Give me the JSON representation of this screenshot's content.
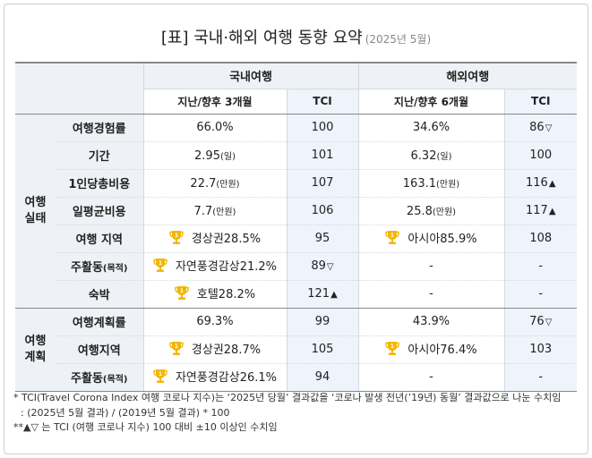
{
  "title": "[표] 국내·해외 여행 동향 요약",
  "title_sub": "(2025년 5월)",
  "headers": {
    "domestic": "국내여행",
    "overseas": "해외여행",
    "dom_period": "지난/향후 3개월",
    "ovs_period": "지난/향후 6개월",
    "tci": "TCI"
  },
  "groups": {
    "actual": "여행\n실태",
    "plan": "여행\n계획"
  },
  "rows": [
    {
      "label": "여행경험률",
      "dom": "66.0%",
      "dom_tci": "100",
      "ovs": "34.6%",
      "ovs_tci": "86",
      "ovs_mark": "▽"
    },
    {
      "label": "기간",
      "dom": "2.95",
      "dom_unit": "(일)",
      "dom_tci": "101",
      "ovs": "6.32",
      "ovs_unit": "(일)",
      "ovs_tci": "100"
    },
    {
      "label": "1인당총비용",
      "dom": "22.7",
      "dom_unit": "(만원)",
      "dom_tci": "107",
      "ovs": "163.1",
      "ovs_unit": "(만원)",
      "ovs_tci": "116",
      "ovs_mark": "▲"
    },
    {
      "label": "일평균비용",
      "dom": "7.7",
      "dom_unit": "(만원)",
      "dom_tci": "106",
      "ovs": "25.8",
      "ovs_unit": "(만원)",
      "ovs_tci": "117",
      "ovs_mark": "▲"
    },
    {
      "label": "여행 지역",
      "dom": "경상권28.5%",
      "dom_tci": "95",
      "ovs": "아시아85.9%",
      "ovs_tci": "108"
    },
    {
      "label": "주활동",
      "label_unit": "(목적)",
      "dom": "자연풍경감상21.2%",
      "dom_tci": "89",
      "dom_mark": "▽",
      "ovs": "-",
      "ovs_tci": "-"
    },
    {
      "label": "숙박",
      "dom": "호텔28.2%",
      "dom_tci": "121",
      "dom_mark": "▲",
      "ovs": "-",
      "ovs_tci": "-"
    },
    {
      "label": "여행계획률",
      "dom": "69.3%",
      "dom_tci": "99",
      "ovs": "43.9%",
      "ovs_tci": "76",
      "ovs_mark": "▽"
    },
    {
      "label": "여행지역",
      "dom": "경상권28.7%",
      "dom_tci": "105",
      "ovs": "아시아76.4%",
      "ovs_tci": "103"
    },
    {
      "label": "주활동",
      "label_unit": "(목적)",
      "dom": "자연풍경감상26.1%",
      "dom_tci": "94",
      "ovs": "-",
      "ovs_tci": "-"
    }
  ],
  "notes": {
    "n1": "* TCI(Travel Corona Index 여행 코로나 지수)는 ‘2025년 당월’ 결과값을 ‘코로나 발생 전년(’19년) 동월’ 결과값으로 나눈 수치임",
    "n2": ": (2025년 5월 결과) / (2019년 5월 결과) * 100",
    "n3": "**▲▽ 는 TCI (여행 코로나 지수) 100 대비 ±10 이상인 수치임"
  },
  "icons": {
    "trophy": "trophy-icon",
    "trophy_color": "#f2b705"
  }
}
